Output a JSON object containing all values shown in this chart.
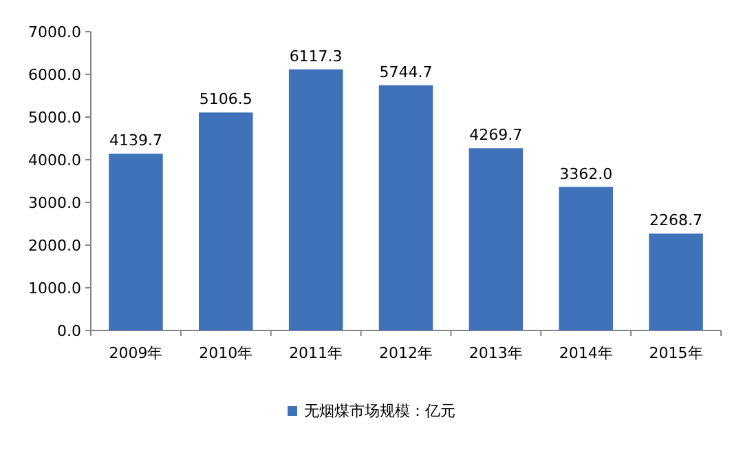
{
  "chart_data": {
    "type": "bar",
    "categories": [
      "2009年",
      "2010年",
      "2011年",
      "2012年",
      "2013年",
      "2014年",
      "2015年"
    ],
    "series": [
      {
        "name": "无烟煤市场规模：亿元",
        "color": "#3f72b8",
        "values": [
          4139.7,
          5106.5,
          6117.3,
          5744.7,
          4269.7,
          3362.0,
          2268.7
        ],
        "value_labels": [
          "4139.7",
          "5106.5",
          "6117.3",
          "5744.7",
          "4269.7",
          "3362.0",
          "2268.7"
        ]
      }
    ],
    "ylim": [
      0,
      7000
    ],
    "yticks": [
      {
        "value": 0,
        "label": "0.0"
      },
      {
        "value": 1000,
        "label": "1000.0"
      },
      {
        "value": 2000,
        "label": "2000.0"
      },
      {
        "value": 3000,
        "label": "3000.0"
      },
      {
        "value": 4000,
        "label": "4000.0"
      },
      {
        "value": 5000,
        "label": "5000.0"
      },
      {
        "value": 6000,
        "label": "6000.0"
      },
      {
        "value": 7000,
        "label": "7000.0"
      }
    ],
    "grid": false,
    "legend": "bottom"
  }
}
